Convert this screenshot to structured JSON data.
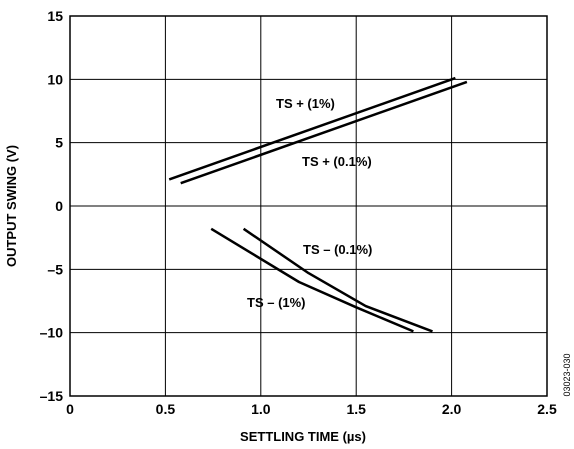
{
  "chart_data": {
    "type": "line",
    "title": "",
    "xlabel": "SETTLING TIME (µs)",
    "ylabel": "OUTPUT SWING (V)",
    "xlim": [
      0,
      2.5
    ],
    "ylim": [
      -15,
      15
    ],
    "x_ticks": [
      "0",
      "0.5",
      "1.0",
      "1.5",
      "2.0",
      "2.5"
    ],
    "y_ticks": [
      "15",
      "10",
      "5",
      "0",
      "–5",
      "–10",
      "–15"
    ],
    "grid": true,
    "series": [
      {
        "name": "TS + (1%)",
        "x": [
          0.52,
          2.02
        ],
        "y": [
          2.1,
          10.1
        ]
      },
      {
        "name": "TS + (0.1%)",
        "x": [
          0.58,
          2.08
        ],
        "y": [
          1.8,
          9.8
        ]
      },
      {
        "name": "TS – (0.1%)",
        "x": [
          0.91,
          1.25,
          1.55,
          1.9
        ],
        "y": [
          -1.8,
          -5.3,
          -7.9,
          -9.9
        ]
      },
      {
        "name": "TS – (1%)",
        "x": [
          0.74,
          1.2,
          1.5,
          1.8
        ],
        "y": [
          -1.8,
          -6.0,
          -8.0,
          -9.9
        ]
      }
    ],
    "annotations": [
      "TS + (1%)",
      "TS + (0.1%)",
      "TS – (0.1%)",
      "TS – (1%)"
    ]
  },
  "figure_id": "03023-030",
  "colors": {
    "line": "#000000",
    "background": "#ffffff"
  }
}
